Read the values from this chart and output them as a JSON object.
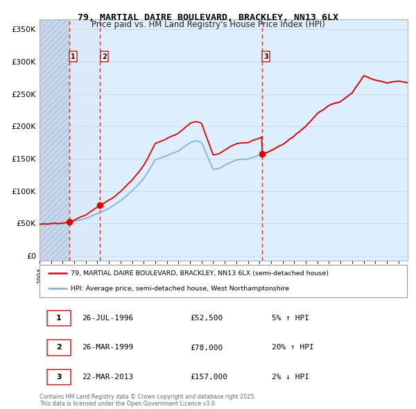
{
  "title_line1": "79, MARTIAL DAIRE BOULEVARD, BRACKLEY, NN13 6LX",
  "title_line2": "Price paid vs. HM Land Registry's House Price Index (HPI)",
  "yticks": [
    0,
    50000,
    100000,
    150000,
    200000,
    250000,
    300000,
    350000
  ],
  "ytick_labels": [
    "£0",
    "£50K",
    "£100K",
    "£150K",
    "£200K",
    "£250K",
    "£300K",
    "£350K"
  ],
  "ylim": [
    -8000,
    365000
  ],
  "xlim_start": 1994.0,
  "xlim_end": 2025.8,
  "sale_dates": [
    1996.57,
    1999.23,
    2013.22
  ],
  "sale_prices": [
    52500,
    78000,
    157000
  ],
  "sale_labels": [
    "1",
    "2",
    "3"
  ],
  "red_line_color": "#dd0000",
  "blue_line_color": "#7aacdc",
  "grid_color": "#c8d8e8",
  "dashed_line_color": "#cc2222",
  "legend_entries": [
    "79, MARTIAL DAIRE BOULEVARD, BRACKLEY, NN13 6LX (semi-detached house)",
    "HPI: Average price, semi-detached house, West Northamptonshire"
  ],
  "table_entries": [
    {
      "label": "1",
      "date": "26-JUL-1996",
      "price": "£52,500",
      "hpi": "5% ↑ HPI"
    },
    {
      "label": "2",
      "date": "26-MAR-1999",
      "price": "£78,000",
      "hpi": "20% ↑ HPI"
    },
    {
      "label": "3",
      "date": "22-MAR-2013",
      "price": "£157,000",
      "hpi": "2% ↓ HPI"
    }
  ],
  "footer": "Contains HM Land Registry data © Crown copyright and database right 2025.\nThis data is licensed under the Open Government Licence v3.0."
}
